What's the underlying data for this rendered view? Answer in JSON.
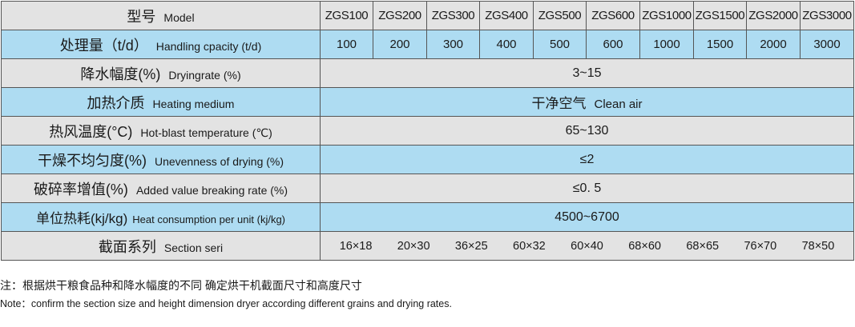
{
  "table": {
    "rows": [
      {
        "key": "model",
        "cn": "型号",
        "en": "Model",
        "values": [
          "ZGS100",
          "ZGS200",
          "ZGS300",
          "ZGS400",
          "ZGS500",
          "ZGS600",
          "ZGS1000",
          "ZGS1500",
          "ZGS2000",
          "ZGS3000"
        ]
      },
      {
        "key": "capacity",
        "cn": "处理量（t/d）",
        "en": "Handling cpacity (t/d)",
        "values": [
          "100",
          "200",
          "300",
          "400",
          "500",
          "600",
          "1000",
          "1500",
          "2000",
          "3000"
        ]
      },
      {
        "key": "drying_rate",
        "cn": "降水幅度(%)",
        "en": "Dryingrate (%)",
        "value": "3~15"
      },
      {
        "key": "heating_medium",
        "cn": "加热介质",
        "en": "Heating medium",
        "value_cn": "干净空气",
        "value_en": "Clean air"
      },
      {
        "key": "hot_blast_temperature",
        "cn": "热风温度(°C)",
        "en": "Hot-blast temperature (℃)",
        "value": "65~130"
      },
      {
        "key": "unevenness",
        "cn": "干燥不均匀度(%)",
        "en": "Unevenness of drying   (%)",
        "value": "≤2"
      },
      {
        "key": "breaking_rate",
        "cn": "破碎率增值(%)",
        "en": "Added value breaking rate (%)",
        "value": "≤0. 5"
      },
      {
        "key": "heat_consumption",
        "cn": "单位热耗(kj/kg)",
        "en": "Heat consumption per unit  (kj/kg)",
        "value": "4500~6700"
      },
      {
        "key": "section",
        "cn": "截面系列",
        "en": "Section seri",
        "values": [
          "16×18",
          "20×30",
          "36×25",
          "60×32",
          "60×40",
          "68×60",
          "68×65",
          "76×70",
          "78×50"
        ]
      }
    ]
  },
  "notes": {
    "cn": "注：根据烘干粮食品种和降水幅度的不同   确定烘干机截面尺寸和高度尺寸",
    "en": "Note：confirm the section size and height dimension  dryer according  different grains and drying rates."
  }
}
